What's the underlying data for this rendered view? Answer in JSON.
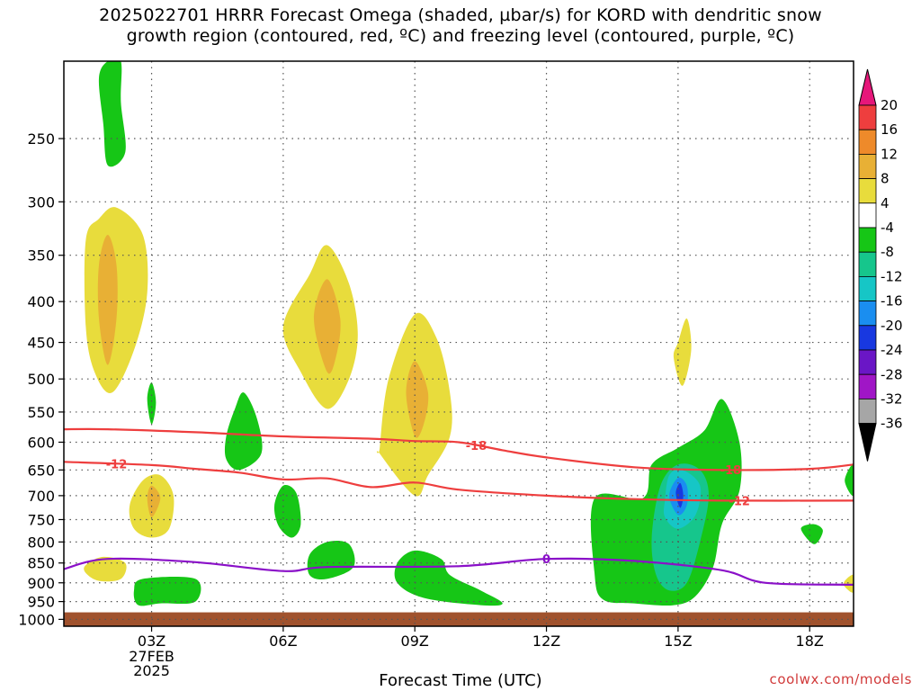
{
  "title": {
    "line1": "2025022701 HRRR Forecast Omega (shaded, µbar/s) for KORD with dendritic snow",
    "line2": "growth region (contoured, red, ºC) and freezing level (contoured, purple, ºC)"
  },
  "credit": "coolwx.com/models",
  "chart_data": {
    "type": "contour",
    "xlabel": "Forecast Time (UTC)",
    "ylabel": "",
    "x_range_hours_utc": [
      1,
      19
    ],
    "y_axis": "pressure (mb), log scale, inverted",
    "ylim": [
      1020,
      200
    ],
    "yticks": [
      250,
      300,
      350,
      400,
      450,
      500,
      550,
      600,
      650,
      700,
      750,
      800,
      850,
      900,
      950,
      1000
    ],
    "xticks": [
      {
        "hour": 3,
        "label": "03Z",
        "date_label": [
          "27FEB",
          "2025"
        ]
      },
      {
        "hour": 6,
        "label": "06Z"
      },
      {
        "hour": 9,
        "label": "09Z"
      },
      {
        "hour": 12,
        "label": "12Z"
      },
      {
        "hour": 15,
        "label": "15Z"
      },
      {
        "hour": 18,
        "label": "18Z"
      }
    ],
    "grid": true,
    "ground_below_mb": 980,
    "colorbar": {
      "labels": [
        "20",
        "16",
        "12",
        "8",
        "4",
        "-4",
        "-8",
        "-12",
        "-16",
        "-20",
        "-24",
        "-28",
        "-32",
        "-36"
      ],
      "colors": [
        "#e6177a",
        "#ee3e3e",
        "#ee8a2a",
        "#e8b035",
        "#e8dc3c",
        "#ffffff",
        "#16c616",
        "#16c68c",
        "#16c6c6",
        "#1a8ef0",
        "#1838e0",
        "#6a16c6",
        "#a016c6",
        "#a6a6a6",
        "#000000"
      ]
    },
    "isotherms": [
      {
        "label": "-18",
        "color": "#ee3e3e",
        "points": [
          [
            1,
            578
          ],
          [
            2,
            578
          ],
          [
            4,
            583
          ],
          [
            6,
            590
          ],
          [
            8,
            594
          ],
          [
            9,
            598
          ],
          [
            10,
            600
          ],
          [
            11,
            614
          ],
          [
            12,
            627
          ],
          [
            14,
            645
          ],
          [
            16,
            650
          ],
          [
            18,
            648
          ],
          [
            19,
            640
          ]
        ]
      },
      {
        "label": "-12",
        "color": "#ee3e3e",
        "points": [
          [
            1,
            635
          ],
          [
            3,
            641
          ],
          [
            4,
            648
          ],
          [
            5,
            655
          ],
          [
            6,
            668
          ],
          [
            7,
            666
          ],
          [
            8,
            683
          ],
          [
            9,
            674
          ],
          [
            10,
            688
          ],
          [
            12,
            700
          ],
          [
            14,
            707
          ],
          [
            16,
            710
          ],
          [
            19,
            710
          ]
        ]
      },
      {
        "label": "0",
        "color": "#8a10c8",
        "points": [
          [
            1,
            865
          ],
          [
            2,
            840
          ],
          [
            4,
            848
          ],
          [
            6,
            870
          ],
          [
            7,
            860
          ],
          [
            10,
            858
          ],
          [
            12,
            840
          ],
          [
            14,
            845
          ],
          [
            16,
            868
          ],
          [
            17,
            900
          ],
          [
            19,
            905
          ]
        ]
      }
    ],
    "shaded_regions": [
      {
        "value": "-4 to -8",
        "color": "#16c616",
        "points": [
          [
            2.0,
            200
          ],
          [
            1.8,
            210
          ],
          [
            1.9,
            240
          ],
          [
            2.0,
            270
          ],
          [
            2.4,
            260
          ],
          [
            2.3,
            225
          ],
          [
            2.3,
            200
          ]
        ]
      },
      {
        "value": "4 to 8",
        "color": "#e8dc3c",
        "points": [
          [
            1.5,
            430
          ],
          [
            1.5,
            335
          ],
          [
            1.8,
            315
          ],
          [
            2.2,
            305
          ],
          [
            2.8,
            330
          ],
          [
            2.9,
            390
          ],
          [
            2.6,
            460
          ],
          [
            2.1,
            520
          ],
          [
            1.7,
            490
          ]
        ]
      },
      {
        "value": "8 to 12",
        "color": "#e8b035",
        "points": [
          [
            1.8,
            420
          ],
          [
            1.8,
            360
          ],
          [
            2.0,
            330
          ],
          [
            2.2,
            360
          ],
          [
            2.2,
            420
          ],
          [
            2.0,
            480
          ]
        ]
      },
      {
        "value": "4 to 8",
        "color": "#e8dc3c",
        "points": [
          [
            6.0,
            430
          ],
          [
            6.6,
            370
          ],
          [
            7.0,
            340
          ],
          [
            7.5,
            380
          ],
          [
            7.7,
            440
          ],
          [
            7.5,
            500
          ],
          [
            7.0,
            545
          ],
          [
            6.4,
            490
          ]
        ]
      },
      {
        "value": "8 to 12",
        "color": "#e8b035",
        "points": [
          [
            6.7,
            420
          ],
          [
            7.0,
            375
          ],
          [
            7.3,
            420
          ],
          [
            7.2,
            470
          ],
          [
            7.0,
            490
          ]
        ]
      },
      {
        "value": "4 to 8",
        "color": "#e8dc3c",
        "points": [
          [
            8.2,
            610
          ],
          [
            8.4,
            500
          ],
          [
            9.0,
            415
          ],
          [
            9.5,
            445
          ],
          [
            9.8,
            520
          ],
          [
            9.8,
            590
          ],
          [
            9.3,
            660
          ],
          [
            9.0,
            700
          ],
          [
            8.2,
            620
          ]
        ]
      },
      {
        "value": "8 to 12",
        "color": "#e8b035",
        "points": [
          [
            8.8,
            520
          ],
          [
            9.0,
            475
          ],
          [
            9.3,
            520
          ],
          [
            9.2,
            570
          ],
          [
            9.0,
            590
          ]
        ]
      },
      {
        "value": "4 to 8",
        "color": "#e8dc3c",
        "points": [
          [
            2.5,
            720
          ],
          [
            2.8,
            670
          ],
          [
            3.2,
            660
          ],
          [
            3.5,
            700
          ],
          [
            3.4,
            770
          ],
          [
            3.0,
            790
          ],
          [
            2.6,
            770
          ]
        ]
      },
      {
        "value": "8 to 12",
        "color": "#e8b035",
        "points": [
          [
            2.9,
            705
          ],
          [
            3.0,
            680
          ],
          [
            3.2,
            705
          ],
          [
            3.0,
            745
          ]
        ]
      },
      {
        "value": "4 to 8",
        "color": "#e8dc3c",
        "points": [
          [
            15.0,
            450
          ],
          [
            15.2,
            420
          ],
          [
            15.3,
            460
          ],
          [
            15.1,
            510
          ],
          [
            14.9,
            470
          ]
        ]
      },
      {
        "value": "4 to 8",
        "color": "#e8dc3c",
        "points": [
          [
            1.5,
            855
          ],
          [
            1.9,
            835
          ],
          [
            2.4,
            850
          ],
          [
            2.3,
            890
          ],
          [
            1.8,
            895
          ],
          [
            1.5,
            875
          ]
        ]
      },
      {
        "value": "4 to 8",
        "color": "#e8dc3c",
        "points": [
          [
            18.8,
            895
          ],
          [
            19.0,
            880
          ],
          [
            19.0,
            925
          ],
          [
            18.8,
            910
          ]
        ]
      },
      {
        "value": "-4 to -8",
        "color": "#16c616",
        "points": [
          [
            2.9,
            530
          ],
          [
            3.0,
            505
          ],
          [
            3.1,
            535
          ],
          [
            3.0,
            570
          ]
        ]
      },
      {
        "value": "-4 to -8",
        "color": "#16c616",
        "points": [
          [
            4.7,
            590
          ],
          [
            4.9,
            545
          ],
          [
            5.1,
            520
          ],
          [
            5.4,
            560
          ],
          [
            5.5,
            620
          ],
          [
            5.0,
            650
          ],
          [
            4.7,
            630
          ]
        ]
      },
      {
        "value": "-4 to -8",
        "color": "#16c616",
        "points": [
          [
            5.8,
            720
          ],
          [
            6.0,
            680
          ],
          [
            6.3,
            695
          ],
          [
            6.4,
            760
          ],
          [
            6.2,
            790
          ],
          [
            5.9,
            765
          ]
        ]
      },
      {
        "value": "-4 to -8",
        "color": "#16c616",
        "points": [
          [
            2.6,
            920
          ],
          [
            2.8,
            890
          ],
          [
            4.0,
            890
          ],
          [
            4.0,
            950
          ],
          [
            3.2,
            955
          ],
          [
            2.7,
            960
          ]
        ]
      },
      {
        "value": "-4 to -8",
        "color": "#16c616",
        "points": [
          [
            6.6,
            830
          ],
          [
            7.0,
            800
          ],
          [
            7.5,
            805
          ],
          [
            7.6,
            860
          ],
          [
            7.0,
            890
          ],
          [
            6.6,
            880
          ]
        ]
      },
      {
        "value": "-4 to -8",
        "color": "#16c616",
        "points": [
          [
            8.6,
            850
          ],
          [
            9.0,
            820
          ],
          [
            9.6,
            840
          ],
          [
            9.8,
            880
          ],
          [
            10.5,
            920
          ],
          [
            11.0,
            955
          ],
          [
            10.5,
            960
          ],
          [
            9.2,
            940
          ],
          [
            8.6,
            900
          ]
        ]
      },
      {
        "value": "-4 to -8",
        "color": "#16c616",
        "points": [
          [
            13.1,
            880
          ],
          [
            13.1,
            705
          ],
          [
            14.2,
            705
          ],
          [
            14.4,
            640
          ],
          [
            15.0,
            610
          ],
          [
            15.6,
            580
          ],
          [
            16.0,
            530
          ],
          [
            16.4,
            600
          ],
          [
            16.4,
            690
          ],
          [
            16.0,
            760
          ],
          [
            15.8,
            860
          ],
          [
            15.4,
            935
          ],
          [
            14.9,
            960
          ],
          [
            14.0,
            955
          ],
          [
            13.3,
            945
          ]
        ]
      },
      {
        "value": "-8 to -12",
        "color": "#16c68c",
        "points": [
          [
            14.4,
            790
          ],
          [
            14.6,
            680
          ],
          [
            15.0,
            640
          ],
          [
            15.5,
            650
          ],
          [
            15.7,
            700
          ],
          [
            15.5,
            800
          ],
          [
            15.2,
            900
          ],
          [
            14.8,
            920
          ],
          [
            14.5,
            880
          ]
        ]
      },
      {
        "value": "-12 to -16",
        "color": "#16c6c6",
        "points": [
          [
            14.7,
            710
          ],
          [
            14.8,
            660
          ],
          [
            15.1,
            650
          ],
          [
            15.5,
            680
          ],
          [
            15.4,
            740
          ],
          [
            15.0,
            770
          ],
          [
            14.7,
            745
          ]
        ]
      },
      {
        "value": "-16 to -20",
        "color": "#1a8ef0",
        "points": [
          [
            14.8,
            700
          ],
          [
            15.0,
            665
          ],
          [
            15.2,
            680
          ],
          [
            15.2,
            720
          ],
          [
            15.0,
            740
          ]
        ]
      },
      {
        "value": "-20 to -24",
        "color": "#1838e0",
        "points": [
          [
            14.95,
            695
          ],
          [
            15.05,
            675
          ],
          [
            15.12,
            700
          ],
          [
            15.05,
            725
          ]
        ]
      },
      {
        "value": "-4 to -8",
        "color": "#16c616",
        "points": [
          [
            17.8,
            770
          ],
          [
            18.1,
            760
          ],
          [
            18.3,
            775
          ],
          [
            18.1,
            805
          ]
        ]
      },
      {
        "value": "-4 to -8",
        "color": "#16c616",
        "points": [
          [
            18.8,
            670
          ],
          [
            19.0,
            640
          ],
          [
            19.0,
            700
          ]
        ]
      }
    ]
  }
}
